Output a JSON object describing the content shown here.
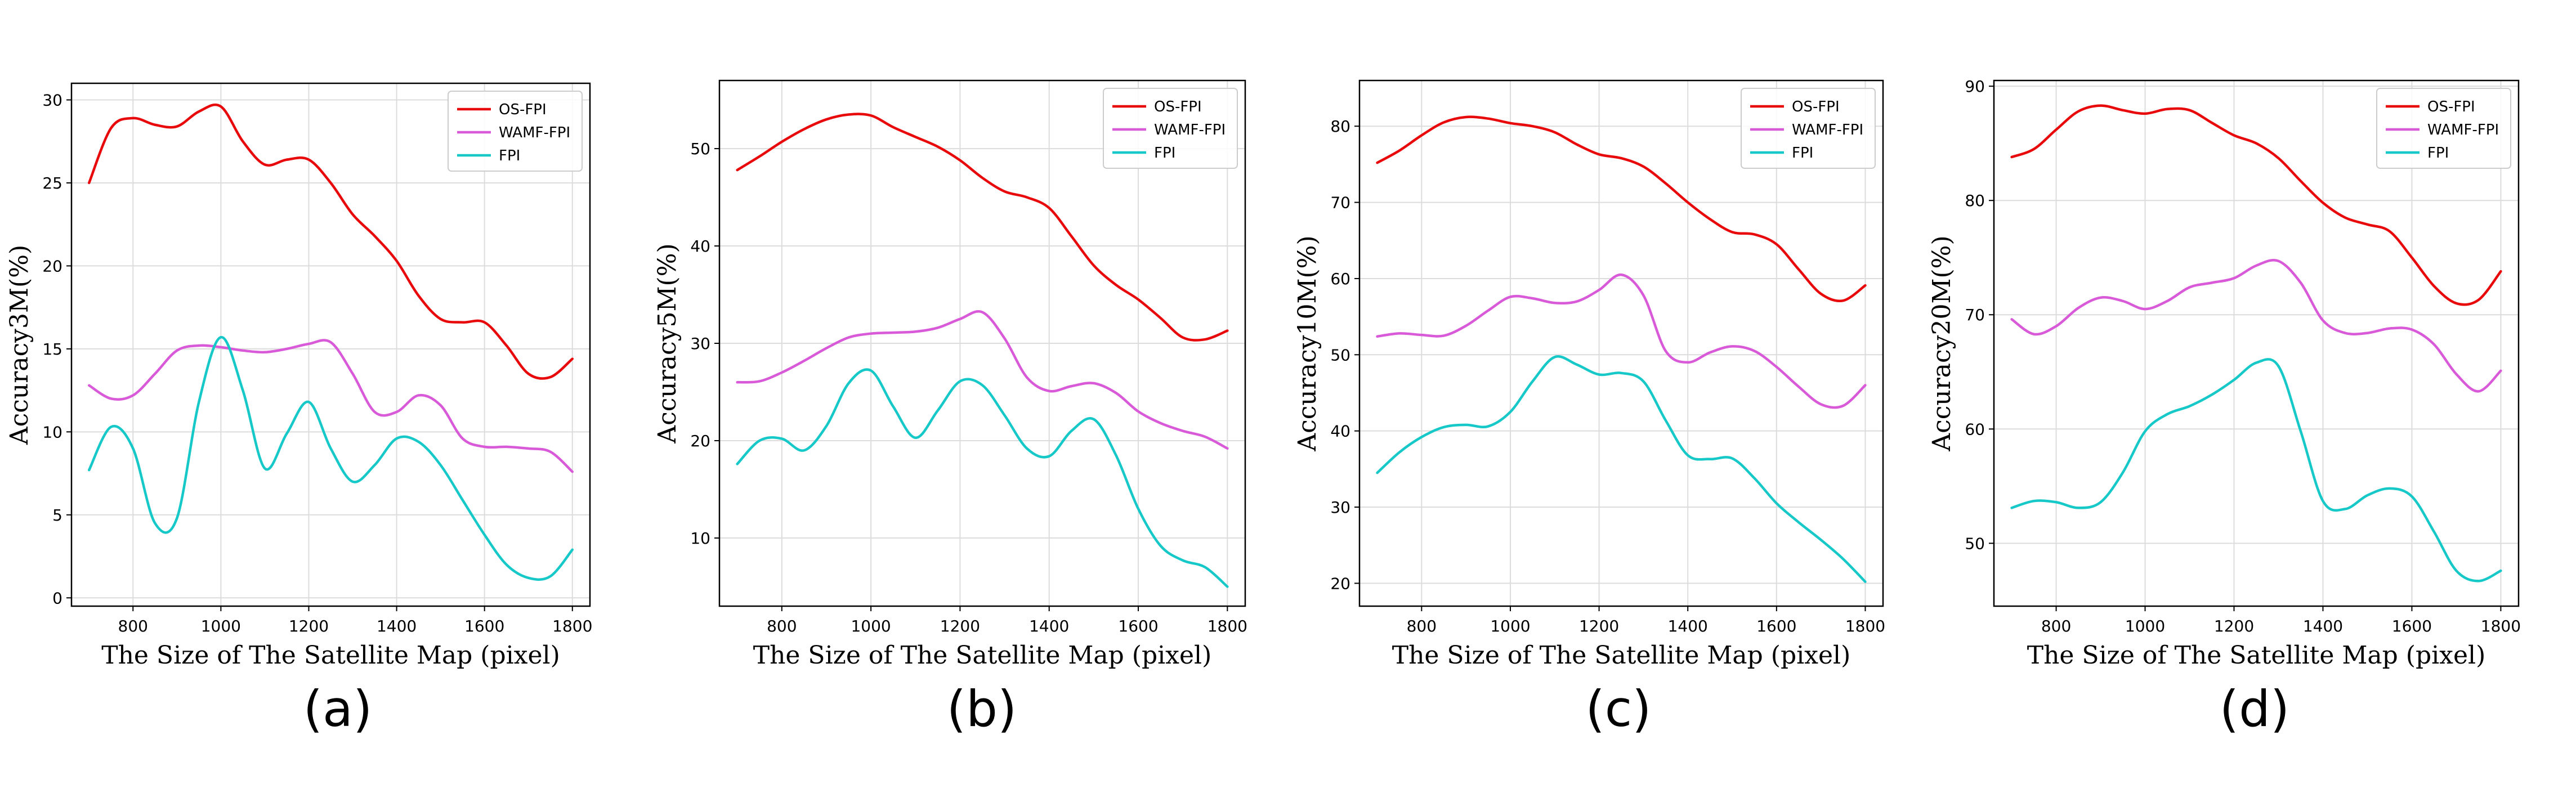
{
  "chart_data": [
    {
      "id": "a",
      "type": "line",
      "caption": "(a)",
      "xlabel": "The Size of The Satellite Map (pixel)",
      "ylabel": "Accuracy3M(%)",
      "xlim": [
        660,
        1840
      ],
      "ylim": [
        -0.5,
        31
      ],
      "xticks": [
        "800",
        "1000",
        "1200",
        "1400",
        "1600",
        "1800"
      ],
      "yticks": [
        "0",
        "5",
        "10",
        "15",
        "20",
        "25",
        "30"
      ],
      "grid": true,
      "legend": "top-right",
      "x": [
        700,
        750,
        800,
        850,
        900,
        950,
        1000,
        1050,
        1100,
        1150,
        1200,
        1250,
        1300,
        1350,
        1400,
        1450,
        1500,
        1550,
        1600,
        1650,
        1700,
        1750,
        1800
      ],
      "series": [
        {
          "name": "OS-FPI",
          "color": "#e8090b",
          "values": [
            25.0,
            28.3,
            28.9,
            28.5,
            28.4,
            29.3,
            29.6,
            27.5,
            26.1,
            26.4,
            26.4,
            25.0,
            23.1,
            21.8,
            20.3,
            18.2,
            16.8,
            16.6,
            16.6,
            15.2,
            13.5,
            13.3,
            14.4
          ]
        },
        {
          "name": "WAMF-FPI",
          "color": "#d85ad8",
          "values": [
            12.8,
            12.0,
            12.2,
            13.5,
            14.9,
            15.2,
            15.1,
            14.9,
            14.8,
            15.0,
            15.3,
            15.4,
            13.5,
            11.2,
            11.2,
            12.2,
            11.6,
            9.6,
            9.1,
            9.1,
            9.0,
            8.8,
            7.6
          ]
        },
        {
          "name": "FPI",
          "color": "#17c8c8",
          "values": [
            7.7,
            10.3,
            9.0,
            4.5,
            4.8,
            11.8,
            15.7,
            12.5,
            7.8,
            9.9,
            11.8,
            9.0,
            7.0,
            8.0,
            9.6,
            9.4,
            8.0,
            5.9,
            3.8,
            2.0,
            1.2,
            1.3,
            2.9
          ]
        }
      ]
    },
    {
      "id": "b",
      "type": "line",
      "caption": "(b)",
      "xlabel": "The Size of The Satellite Map (pixel)",
      "ylabel": "Accuracy5M(%)",
      "xlim": [
        660,
        1840
      ],
      "ylim": [
        3,
        57
      ],
      "xticks": [
        "800",
        "1000",
        "1200",
        "1400",
        "1600",
        "1800"
      ],
      "yticks": [
        "10",
        "20",
        "30",
        "40",
        "50"
      ],
      "grid": true,
      "legend": "top-right",
      "x": [
        700,
        750,
        800,
        850,
        900,
        950,
        1000,
        1050,
        1100,
        1150,
        1200,
        1250,
        1300,
        1350,
        1400,
        1450,
        1500,
        1550,
        1600,
        1650,
        1700,
        1750,
        1800
      ],
      "series": [
        {
          "name": "OS-FPI",
          "color": "#e8090b",
          "values": [
            47.8,
            49.2,
            50.7,
            52.0,
            53.0,
            53.5,
            53.4,
            52.2,
            51.2,
            50.2,
            48.8,
            47.0,
            45.6,
            45.0,
            43.9,
            41.0,
            38.0,
            36.0,
            34.5,
            32.6,
            30.6,
            30.4,
            31.3
          ]
        },
        {
          "name": "WAMF-FPI",
          "color": "#d85ad8",
          "values": [
            26.0,
            26.1,
            27.0,
            28.2,
            29.5,
            30.6,
            31.0,
            31.1,
            31.2,
            31.6,
            32.5,
            33.2,
            30.5,
            26.5,
            25.1,
            25.6,
            25.9,
            24.9,
            23.0,
            21.8,
            21.0,
            20.4,
            19.2
          ]
        },
        {
          "name": "FPI",
          "color": "#17c8c8",
          "values": [
            17.6,
            20.0,
            20.2,
            19.0,
            21.5,
            25.9,
            27.2,
            23.5,
            20.3,
            23.1,
            26.1,
            25.7,
            22.6,
            19.2,
            18.4,
            21.0,
            22.2,
            18.5,
            13.0,
            9.2,
            7.7,
            7.0,
            5.0
          ]
        }
      ]
    },
    {
      "id": "c",
      "type": "line",
      "caption": "(c)",
      "xlabel": "The Size of The Satellite Map (pixel)",
      "ylabel": "Accuracy10M(%)",
      "xlim": [
        660,
        1840
      ],
      "ylim": [
        17,
        86
      ],
      "xticks": [
        "800",
        "1000",
        "1200",
        "1400",
        "1600",
        "1800"
      ],
      "yticks": [
        "20",
        "30",
        "40",
        "50",
        "60",
        "70",
        "80"
      ],
      "grid": true,
      "legend": "top-right",
      "x": [
        700,
        750,
        800,
        850,
        900,
        950,
        1000,
        1050,
        1100,
        1150,
        1200,
        1250,
        1300,
        1350,
        1400,
        1450,
        1500,
        1550,
        1600,
        1650,
        1700,
        1750,
        1800
      ],
      "series": [
        {
          "name": "OS-FPI",
          "color": "#e8090b",
          "values": [
            75.2,
            76.8,
            78.8,
            80.5,
            81.2,
            81.0,
            80.4,
            80.0,
            79.2,
            77.6,
            76.3,
            75.8,
            74.7,
            72.5,
            70.0,
            67.8,
            66.1,
            65.8,
            64.5,
            61.2,
            58.0,
            57.1,
            59.1
          ]
        },
        {
          "name": "WAMF-FPI",
          "color": "#d85ad8",
          "values": [
            52.4,
            52.8,
            52.6,
            52.5,
            53.8,
            55.8,
            57.6,
            57.4,
            56.8,
            57.0,
            58.5,
            60.5,
            57.8,
            50.5,
            49.0,
            50.3,
            51.1,
            50.5,
            48.4,
            45.8,
            43.5,
            43.3,
            46.0
          ]
        },
        {
          "name": "FPI",
          "color": "#17c8c8",
          "values": [
            34.5,
            37.2,
            39.2,
            40.5,
            40.8,
            40.6,
            42.5,
            46.5,
            49.7,
            48.7,
            47.4,
            47.6,
            46.5,
            41.4,
            36.8,
            36.3,
            36.4,
            33.8,
            30.5,
            28.0,
            25.7,
            23.2,
            20.2
          ]
        }
      ]
    },
    {
      "id": "d",
      "type": "line",
      "caption": "(d)",
      "xlabel": "The Size of The Satellite Map (pixel)",
      "ylabel": "Accuracy20M(%)",
      "xlim": [
        660,
        1840
      ],
      "ylim": [
        44.5,
        90.5
      ],
      "xticks": [
        "800",
        "1000",
        "1200",
        "1400",
        "1600",
        "1800"
      ],
      "yticks": [
        "50",
        "60",
        "70",
        "80",
        "90"
      ],
      "grid": true,
      "legend": "top-right",
      "x": [
        700,
        750,
        800,
        850,
        900,
        950,
        1000,
        1050,
        1100,
        1150,
        1200,
        1250,
        1300,
        1350,
        1400,
        1450,
        1500,
        1550,
        1600,
        1650,
        1700,
        1750,
        1800
      ],
      "series": [
        {
          "name": "OS-FPI",
          "color": "#e8090b",
          "values": [
            83.8,
            84.5,
            86.2,
            87.8,
            88.3,
            87.9,
            87.6,
            88.0,
            87.9,
            86.8,
            85.7,
            85.0,
            83.7,
            81.7,
            79.8,
            78.5,
            77.9,
            77.3,
            75.0,
            72.5,
            71.0,
            71.3,
            73.8
          ]
        },
        {
          "name": "WAMF-FPI",
          "color": "#d85ad8",
          "values": [
            69.6,
            68.3,
            69.0,
            70.6,
            71.5,
            71.2,
            70.5,
            71.2,
            72.4,
            72.8,
            73.2,
            74.3,
            74.7,
            72.8,
            69.5,
            68.4,
            68.4,
            68.8,
            68.7,
            67.4,
            64.8,
            63.3,
            65.1
          ]
        },
        {
          "name": "FPI",
          "color": "#17c8c8",
          "values": [
            53.1,
            53.7,
            53.6,
            53.1,
            53.6,
            56.2,
            59.8,
            61.3,
            62.0,
            63.0,
            64.3,
            65.8,
            65.5,
            59.8,
            53.7,
            53.0,
            54.2,
            54.8,
            54.1,
            51.0,
            47.6,
            46.7,
            47.6
          ]
        }
      ]
    }
  ]
}
